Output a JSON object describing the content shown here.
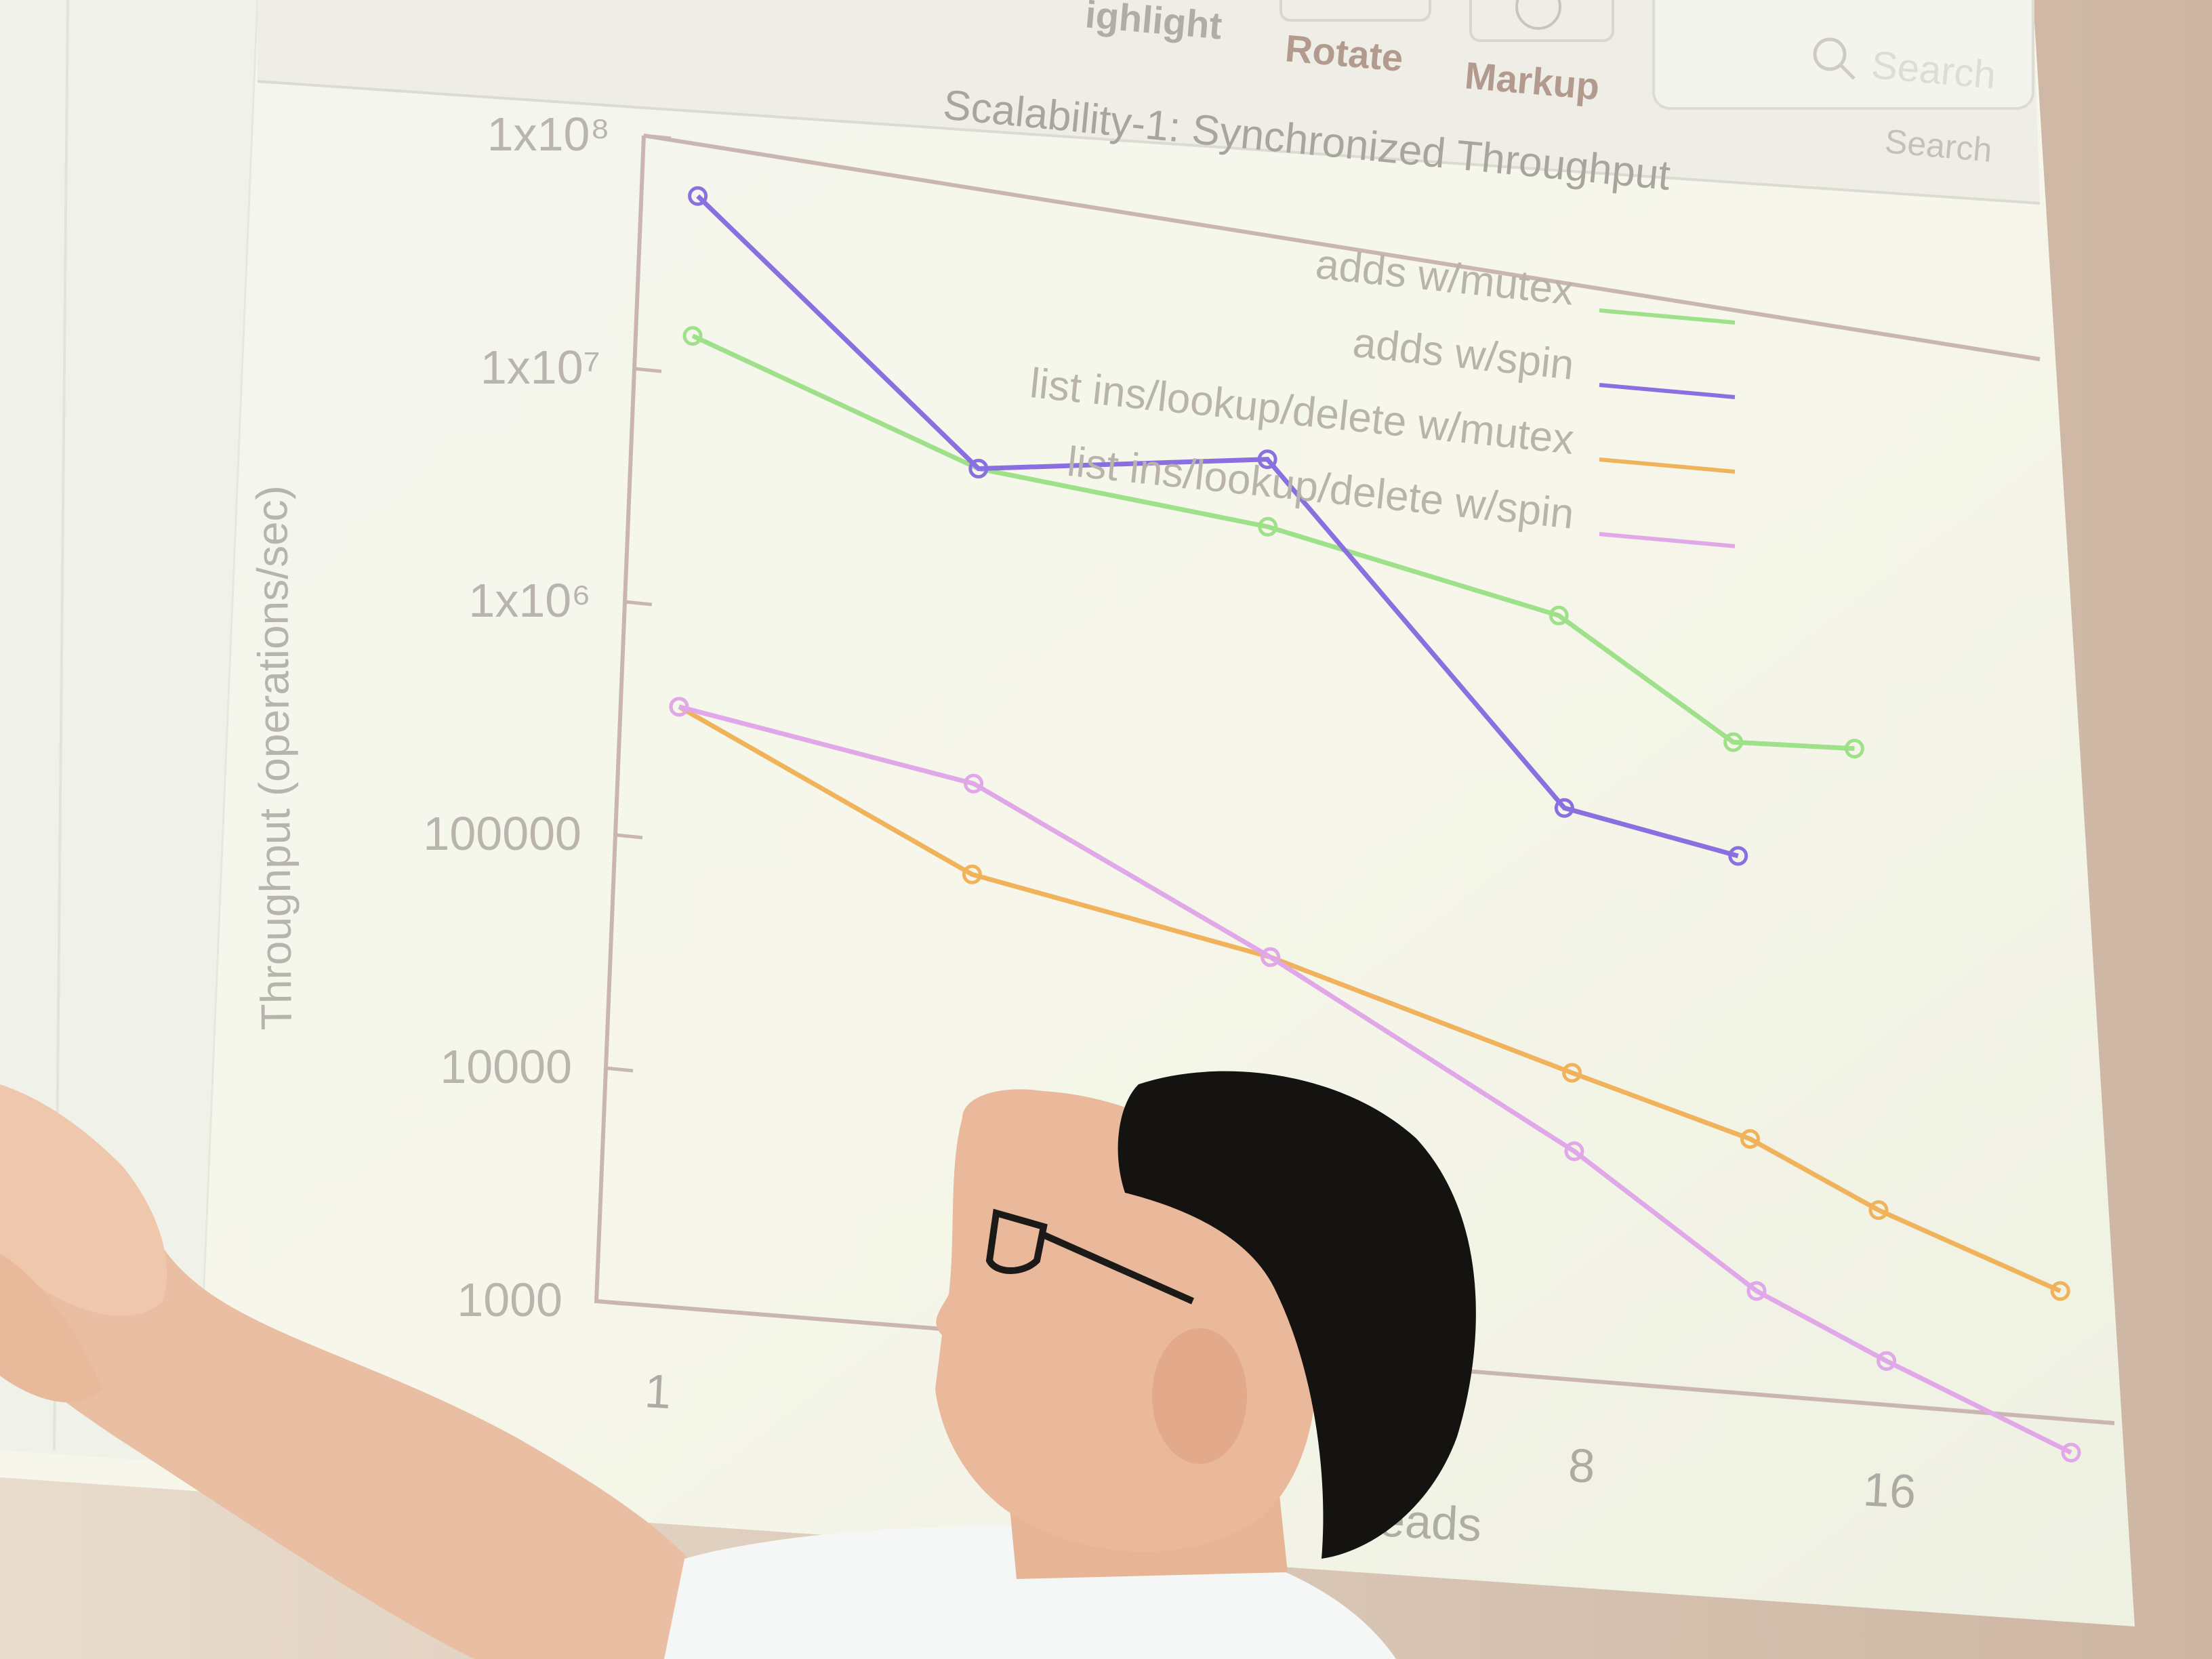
{
  "toolbar": {
    "items": [
      {
        "label": "ighlight"
      },
      {
        "label": "Rotate"
      },
      {
        "label": "Markup"
      }
    ],
    "search_placeholder": "Search",
    "search_label": "Search"
  },
  "chart_data": {
    "type": "line",
    "title": "Scalability-1: Synchronized Throughput",
    "xlabel": "reads",
    "ylabel": "Throughput (operations/sec)",
    "y_scale": "log",
    "ylim": [
      1000,
      100000000
    ],
    "y_ticks": [
      "1000",
      "10000",
      "100000",
      "1x10⁶",
      "1x10⁷",
      "1x10⁸"
    ],
    "x_ticks": [
      "1",
      "8",
      "16"
    ],
    "x": [
      1,
      2,
      4,
      8,
      12,
      16,
      24
    ],
    "grid": false,
    "legend_position": "top-right",
    "series": [
      {
        "name": "adds w/mutex",
        "color": "#9fe08a",
        "values": [
          15000000,
          6000000,
          5000000,
          3000000,
          1000000,
          1100000,
          null
        ]
      },
      {
        "name": "adds w/spin",
        "color": "#8a6fe0",
        "values": [
          60000000,
          6000000,
          10000000,
          400000,
          300000,
          null,
          null
        ]
      },
      {
        "name": "list ins/lookup/delete w/mutex",
        "color": "#f0b35c",
        "values": [
          380000,
          100000,
          60000,
          25000,
          15000,
          8000,
          4000
        ]
      },
      {
        "name": "list ins/lookup/delete w/spin",
        "color": "#e0a8e8",
        "values": [
          380000,
          250000,
          60000,
          11000,
          3000,
          1600,
          700
        ]
      }
    ]
  },
  "colors": {
    "screen": "#f6f7ee",
    "axis": "#c9b6b0",
    "tick_label": "#b9b5ae",
    "title": "#a8a49d"
  }
}
